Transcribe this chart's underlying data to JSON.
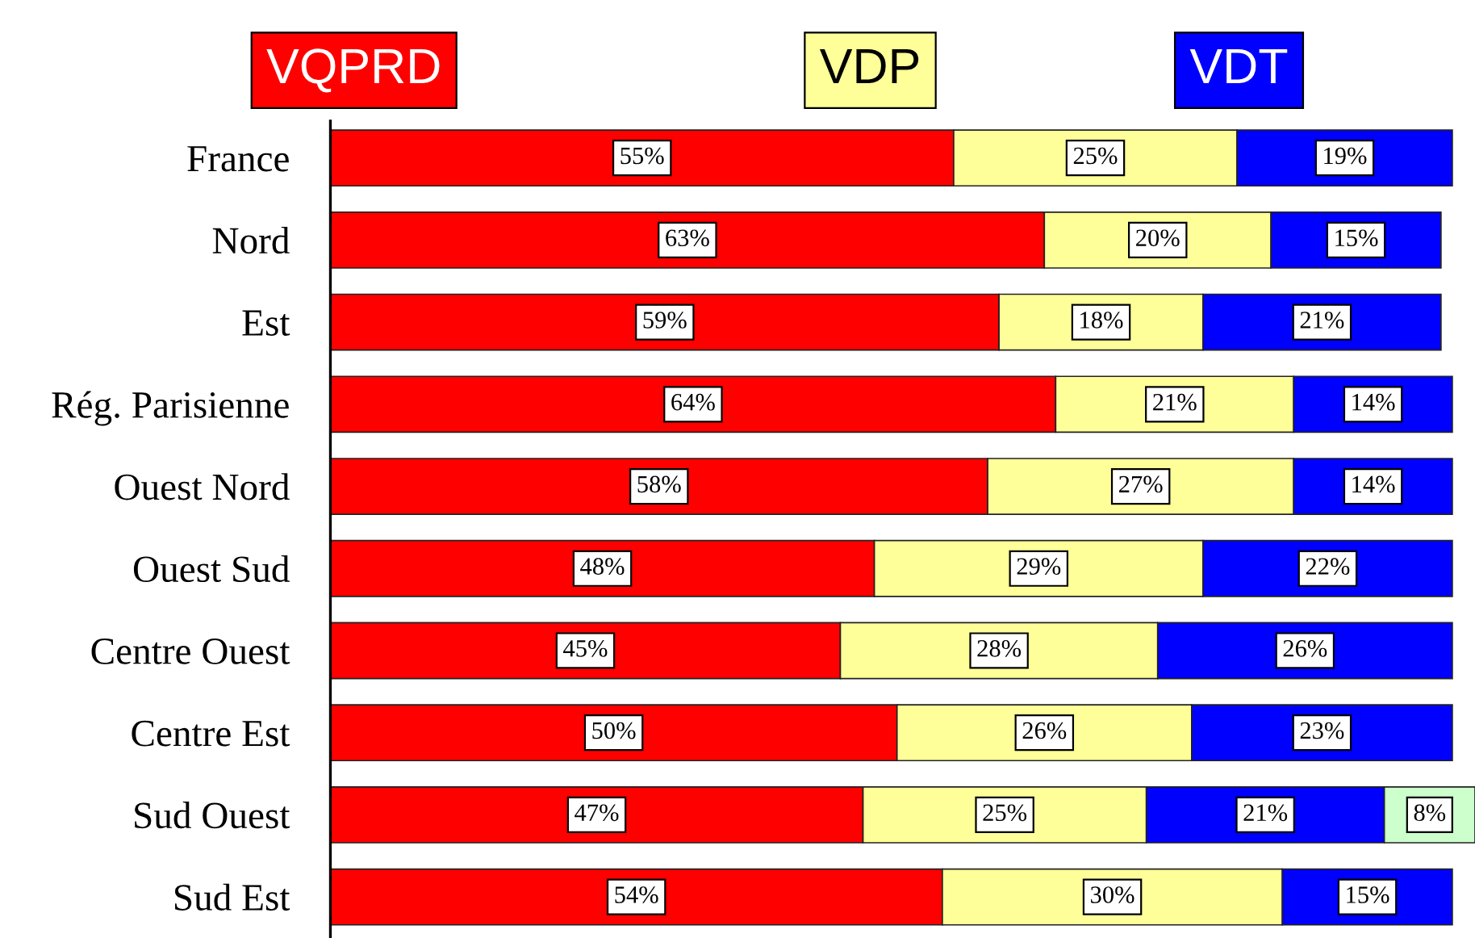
{
  "chart_data": {
    "type": "bar",
    "orientation": "horizontal",
    "stacked": true,
    "legend": "top",
    "grid": false,
    "categories": [
      "France",
      "Nord",
      "Est",
      "Rég. Parisienne",
      "Ouest Nord",
      "Ouest Sud",
      "Centre Ouest",
      "Centre Est",
      "Sud Ouest",
      "Sud Est"
    ],
    "series": [
      {
        "name": "VQPRD",
        "color": "#ff0000",
        "values": [
          55,
          63,
          59,
          64,
          58,
          48,
          45,
          50,
          47,
          54
        ],
        "value_labels": [
          "55%",
          "63%",
          "59%",
          "64%",
          "58%",
          "48%",
          "45%",
          "50%",
          "47%",
          "54%"
        ]
      },
      {
        "name": "VDP",
        "color": "#ffff99",
        "values": [
          25,
          20,
          18,
          21,
          27,
          29,
          28,
          26,
          25,
          30
        ],
        "value_labels": [
          "25%",
          "20%",
          "18%",
          "21%",
          "27%",
          "29%",
          "28%",
          "26%",
          "25%",
          "30%"
        ]
      },
      {
        "name": "VDT",
        "color": "#0000ff",
        "values": [
          19,
          15,
          21,
          14,
          14,
          22,
          26,
          23,
          21,
          15
        ],
        "value_labels": [
          "19%",
          "15%",
          "21%",
          "14%",
          "14%",
          "22%",
          "26%",
          "23%",
          "21%",
          "15%"
        ]
      },
      {
        "color": "#ccffcc",
        "values": [
          null,
          null,
          null,
          null,
          null,
          null,
          null,
          null,
          8,
          null
        ],
        "value_labels": [
          null,
          null,
          null,
          null,
          null,
          null,
          null,
          null,
          "8%",
          null
        ]
      }
    ]
  }
}
